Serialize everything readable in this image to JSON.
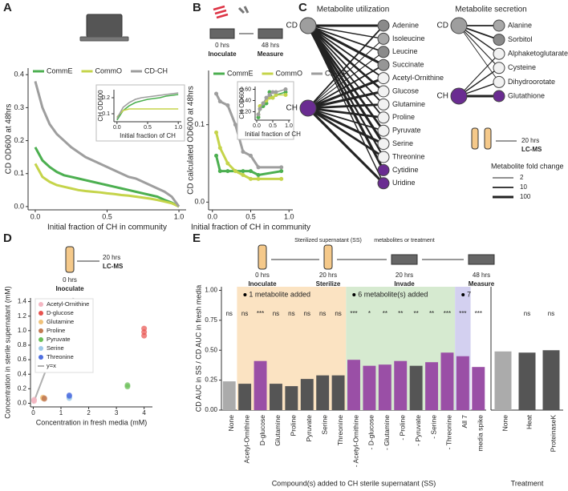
{
  "chart_data": [
    {
      "type": "line",
      "panel": "A",
      "xlabel": "Initial fraction of CH in community",
      "ylabel": "CD OD600 at 48hrs",
      "x": [
        0,
        0.05,
        0.1,
        0.15,
        0.2,
        0.25,
        0.3,
        0.35,
        0.4,
        0.45,
        0.5,
        0.55,
        0.6,
        0.65,
        0.7,
        0.75,
        0.8,
        0.85,
        0.9,
        0.95,
        1.0
      ],
      "xlim": [
        -0.05,
        1.05
      ],
      "xticks": [
        {
          "value": 0,
          "label": "0.0"
        },
        0.5,
        {
          "value": 1,
          "label": "1.0"
        }
      ],
      "ylim": [
        -0.01,
        0.42
      ],
      "yticks": [
        {
          "value": 0,
          "label": "0.0"
        },
        0.1,
        0.2,
        0.3,
        0.4
      ],
      "legend": "upper left",
      "series": [
        {
          "name": "CommE",
          "color": "#4caf50",
          "values": [
            0.18,
            0.14,
            0.12,
            0.105,
            0.095,
            0.09,
            0.085,
            0.08,
            0.075,
            0.07,
            0.065,
            0.06,
            0.055,
            0.05,
            0.045,
            0.04,
            0.035,
            0.03,
            0.02,
            0.012,
            0.0
          ]
        },
        {
          "name": "CommO",
          "color": "#c5d44a",
          "values": [
            0.13,
            0.09,
            0.075,
            0.065,
            0.06,
            0.055,
            0.05,
            0.047,
            0.045,
            0.043,
            0.04,
            0.038,
            0.035,
            0.033,
            0.03,
            0.027,
            0.024,
            0.02,
            0.015,
            0.01,
            0.0
          ]
        },
        {
          "name": "CD-CH",
          "color": "#9e9e9e",
          "values": [
            0.38,
            0.3,
            0.25,
            0.22,
            0.2,
            0.18,
            0.165,
            0.15,
            0.14,
            0.13,
            0.12,
            0.11,
            0.1,
            0.09,
            0.085,
            0.075,
            0.065,
            0.055,
            0.045,
            0.03,
            0.0
          ]
        }
      ],
      "inset": {
        "xlabel": "Initial fraction of CH",
        "ylabel": "CH OD600",
        "x": [
          0,
          0.1,
          0.2,
          0.3,
          0.4,
          0.5,
          0.6,
          0.7,
          0.8,
          0.9,
          1.0
        ],
        "xlim": [
          -0.05,
          1.05
        ],
        "xticks": [
          {
            "value": 0,
            "label": "0.0"
          },
          0.5,
          {
            "value": 1,
            "label": "1.0"
          }
        ],
        "ylim": [
          0.05,
          0.25
        ],
        "yticks": [
          0.1,
          0.2
        ],
        "series": [
          {
            "color": "#4caf50",
            "values": [
              0.06,
              0.12,
              0.15,
              0.17,
              0.18,
              0.19,
              0.195,
              0.2,
              0.21,
              0.215,
              0.22
            ]
          },
          {
            "color": "#c5d44a",
            "values": [
              0.08,
              0.12,
              0.13,
              0.13,
              0.13,
              0.13,
              0.13,
              0.13,
              0.13,
              0.13,
              0.13
            ]
          },
          {
            "color": "#9e9e9e",
            "values": [
              0.07,
              0.14,
              0.17,
              0.19,
              0.2,
              0.205,
              0.21,
              0.215,
              0.22,
              0.225,
              0.23
            ]
          }
        ]
      }
    },
    {
      "type": "line",
      "panel": "B",
      "xlabel": "Initial fraction of CH in community",
      "ylabel": "CD calculated OD600 at 48hrs",
      "steps": [
        {
          "time": "0 hrs",
          "action": "Inoculate"
        },
        {
          "time": "48 hrs",
          "action": "Measure"
        }
      ],
      "x": [
        0.05,
        0.1,
        0.2,
        0.3,
        0.4,
        0.5,
        0.6,
        0.9
      ],
      "markers": true,
      "xlim": [
        -0.05,
        1.05
      ],
      "xticks": [
        {
          "value": 0,
          "label": "0.0"
        },
        0.5,
        {
          "value": 1,
          "label": "1.0"
        }
      ],
      "ylim": [
        -0.01,
        0.17
      ],
      "yticks": [
        {
          "value": 0,
          "label": "0.0"
        },
        0.1
      ],
      "legend": "upper left",
      "series": [
        {
          "name": "CommE",
          "color": "#4caf50",
          "values": [
            0.06,
            0.04,
            0.04,
            0.04,
            0.04,
            0.04,
            0.035,
            0.04
          ]
        },
        {
          "name": "CommO",
          "color": "#c5d44a",
          "values": [
            0.09,
            0.07,
            0.05,
            0.04,
            0.035,
            0.03,
            0.03,
            0.03
          ]
        },
        {
          "name": "CD-CH",
          "color": "#9e9e9e",
          "values": [
            0.14,
            0.13,
            0.125,
            0.1,
            0.065,
            0.06,
            0.045,
            0.045
          ]
        }
      ],
      "inset": {
        "xlabel": "Initial fraction of CH",
        "ylabel": "CH OD600",
        "x": [
          0.05,
          0.1,
          0.2,
          0.3,
          0.4,
          0.5,
          0.6,
          0.9
        ],
        "xlim": [
          -0.05,
          1.05
        ],
        "xticks": [
          {
            "value": 0,
            "label": "0.0"
          },
          0.5,
          {
            "value": 1,
            "label": "1.0"
          }
        ],
        "ylim": [
          0.05,
          0.65
        ],
        "yticks": [
          {
            "value": 0.2,
            "label": "0.20"
          },
          {
            "value": 0.4,
            "label": "0.40"
          },
          {
            "value": 0.6,
            "label": "0.60"
          }
        ],
        "series": [
          {
            "color": "#4caf50",
            "values": [
              0.1,
              0.25,
              0.3,
              0.35,
              0.55,
              0.45,
              0.5,
              0.55
            ]
          },
          {
            "color": "#c5d44a",
            "values": [
              0.15,
              0.3,
              0.35,
              0.4,
              0.45,
              0.45,
              0.5,
              0.5
            ]
          },
          {
            "color": "#9e9e9e",
            "values": [
              0.15,
              0.25,
              0.35,
              0.45,
              0.5,
              0.55,
              0.55,
              0.6
            ]
          }
        ]
      }
    },
    {
      "type": "network",
      "panel": "C",
      "groups": [
        {
          "title": "Metabolite utilization",
          "sources": [
            "CD",
            "CH"
          ],
          "source_colors": [
            "#9e9e9e",
            "#6a2c91"
          ],
          "targets": [
            {
              "name": "Adenine",
              "color": "#8a8a8a",
              "fold_change": [
                100,
                10
              ]
            },
            {
              "name": "Isoleucine",
              "color": "#a8a8a8",
              "fold_change": [
                5,
                3
              ]
            },
            {
              "name": "Leucine",
              "color": "#8a8a8a",
              "fold_change": [
                10,
                3
              ]
            },
            {
              "name": "Succinate",
              "color": "#969696",
              "fold_change": [
                100,
                10
              ]
            },
            {
              "name": "Acetyl-Ornithine",
              "color": "#f2f2f2",
              "fold_change": [
                10,
                100
              ]
            },
            {
              "name": "Glucose",
              "color": "#f2f2f2",
              "fold_change": [
                50,
                100
              ]
            },
            {
              "name": "Glutamine",
              "color": "#f2f2f2",
              "fold_change": [
                10,
                50
              ]
            },
            {
              "name": "Proline",
              "color": "#f2f2f2",
              "fold_change": [
                10,
                50
              ]
            },
            {
              "name": "Pyruvate",
              "color": "#f2f2f2",
              "fold_change": [
                50,
                10
              ]
            },
            {
              "name": "Serine",
              "color": "#f2f2f2",
              "fold_change": [
                100,
                100
              ]
            },
            {
              "name": "Threonine",
              "color": "#f2f2f2",
              "fold_change": [
                20,
                50
              ]
            },
            {
              "name": "Cytidine",
              "color": "#6a2c91",
              "fold_change": [
                100,
                null
              ]
            },
            {
              "name": "Uridine",
              "color": "#6a2c91",
              "fold_change": [
                5,
                100
              ]
            }
          ]
        },
        {
          "title": "Metabolite secretion",
          "sources": [
            "CD",
            "CH"
          ],
          "source_colors": [
            "#9e9e9e",
            "#6a2c91"
          ],
          "targets": [
            {
              "name": "Alanine",
              "color": "#a8a8a8",
              "fold_change": [
                10,
                null
              ]
            },
            {
              "name": "Sorbitol",
              "color": "#8a8a8a",
              "fold_change": [
                10,
                null
              ]
            },
            {
              "name": "Alphaketoglutarate",
              "color": "#f2f2f2",
              "fold_change": [
                5,
                3
              ]
            },
            {
              "name": "Cysteine",
              "color": "#f2f2f2",
              "fold_change": [
                3,
                5
              ]
            },
            {
              "name": "Dihydroorotate",
              "color": "#f2f2f2",
              "fold_change": [
                2,
                5
              ]
            },
            {
              "name": "Glutathione",
              "color": "#6a2c91",
              "fold_change": [
                null,
                100
              ]
            }
          ]
        }
      ],
      "steps": [
        {
          "time": "20 hrs",
          "action": "LC-MS"
        }
      ],
      "legend_title": "Metabolite fold change",
      "legend_values": [
        2,
        10,
        100
      ]
    },
    {
      "type": "scatter",
      "panel": "D",
      "xlabel": "Concentration in fresh media (mM)",
      "ylabel": "Concentration in sterile supernatant (mM)",
      "steps": [
        {
          "time": "20 hrs",
          "action": "LC-MS"
        },
        {
          "time": "0 hrs",
          "action": "Inoculate"
        }
      ],
      "xlim": [
        -0.1,
        4.3
      ],
      "xticks": [
        0,
        1,
        2,
        3,
        4
      ],
      "ylim": [
        -0.05,
        1.45
      ],
      "yticks": [
        {
          "value": 0,
          "label": "0.0"
        },
        0.2,
        0.4,
        0.6,
        0.8,
        {
          "value": 1,
          "label": "1.0"
        },
        1.2,
        1.4
      ],
      "legend": "upper left",
      "series": [
        {
          "name": "Acetyl-Ornithine",
          "color": "#f4b6c2",
          "x": [
            0.03,
            0.03,
            0.03
          ],
          "values": [
            0.03,
            0.05,
            0.04
          ]
        },
        {
          "name": "D-glucose",
          "color": "#e8534f",
          "x": [
            4,
            4,
            4
          ],
          "values": [
            0.93,
            0.98,
            1.03
          ]
        },
        {
          "name": "Glutamine",
          "color": "#f0c27a",
          "x": [
            0.35,
            0.35
          ],
          "values": [
            0.07,
            0.08
          ]
        },
        {
          "name": "Proline",
          "color": "#c27a52",
          "x": [
            0.4,
            0.4
          ],
          "values": [
            0.06,
            0.07
          ]
        },
        {
          "name": "Pyruvate",
          "color": "#6bbf59",
          "x": [
            3.4,
            3.4
          ],
          "values": [
            0.23,
            0.25
          ]
        },
        {
          "name": "Serine",
          "color": "#9ec9e8",
          "x": [
            1.3,
            1.3
          ],
          "values": [
            0.07,
            0.08
          ]
        },
        {
          "name": "Threonine",
          "color": "#4f6fe0",
          "x": [
            1.3,
            1.3
          ],
          "values": [
            0.1,
            0.11
          ]
        }
      ],
      "reference_line": {
        "name": "y=x",
        "color": "#b0b0b0"
      }
    },
    {
      "type": "bar",
      "panel": "E",
      "ylabel": "CD AUC in SS / CD AUC in fresh media",
      "xlabel": "Compound(s) added to CH sterile supernatant (SS)",
      "steps": [
        {
          "time": "0 hrs",
          "action": "Inoculate"
        },
        {
          "time": "20 hrs",
          "action": "Sterilize",
          "note": "Sterilized supernatant (SS)"
        },
        {
          "time": "20 hrs",
          "action": "Invade",
          "note": "metabolites or treatment"
        },
        {
          "time": "48 hrs",
          "action": "Measure"
        }
      ],
      "categories": [
        "None",
        "Acetyl-Ornithine",
        "D-glucose",
        "Glutamine",
        "Proline",
        "Pyruvate",
        "Serine",
        "Threonine",
        "- Acetyl-Ornithine",
        "- D-glucose",
        "- Glutamine",
        "- Proline",
        "- Pyruvate",
        "- Serine",
        "- Threonine",
        "All 7",
        "media spike"
      ],
      "values": [
        0.24,
        0.22,
        0.41,
        0.22,
        0.2,
        0.26,
        0.29,
        0.29,
        0.42,
        0.37,
        0.38,
        0.41,
        0.37,
        0.4,
        0.48,
        0.45,
        0.36
      ],
      "colors": [
        "#ababab",
        "#555555",
        "#9a4fa6",
        "#555555",
        "#555555",
        "#555555",
        "#555555",
        "#555555",
        "#9a4fa6",
        "#9a4fa6",
        "#9a4fa6",
        "#9a4fa6",
        "#555555",
        "#9a4fa6",
        "#9a4fa6",
        "#9a4fa6",
        "#9a4fa6"
      ],
      "significance": [
        "ns",
        "ns",
        "***",
        "ns",
        "ns",
        "ns",
        "ns",
        "ns",
        "***",
        "*",
        "**",
        "**",
        "**",
        "**",
        "***",
        "***",
        "***"
      ],
      "ylim": [
        0,
        1.03
      ],
      "yticks": [
        {
          "value": 0,
          "label": "0.00"
        },
        0.25,
        {
          "value": 0.5,
          "label": "0.50"
        },
        0.75,
        {
          "value": 1,
          "label": "1.00"
        }
      ],
      "groups": [
        {
          "label": "1 metabolite added",
          "from": "Acetyl-Ornithine",
          "to": "Threonine",
          "color": "#fbe3c2"
        },
        {
          "label": "6 metabolite(s) added",
          "from": "- Acetyl-Ornithine",
          "to": "- Threonine",
          "color": "#d6ead0"
        },
        {
          "label": "7",
          "from": "All 7",
          "to": "All 7",
          "color": "#d3d0f0"
        }
      ],
      "treatment": {
        "xlabel": "Treatment",
        "categories": [
          "None",
          "Heat",
          "ProteinaseK"
        ],
        "values": [
          0.49,
          0.48,
          0.5
        ],
        "colors": [
          "#ababab",
          "#555555",
          "#555555"
        ],
        "significance": [
          null,
          "ns",
          "ns"
        ]
      }
    }
  ]
}
